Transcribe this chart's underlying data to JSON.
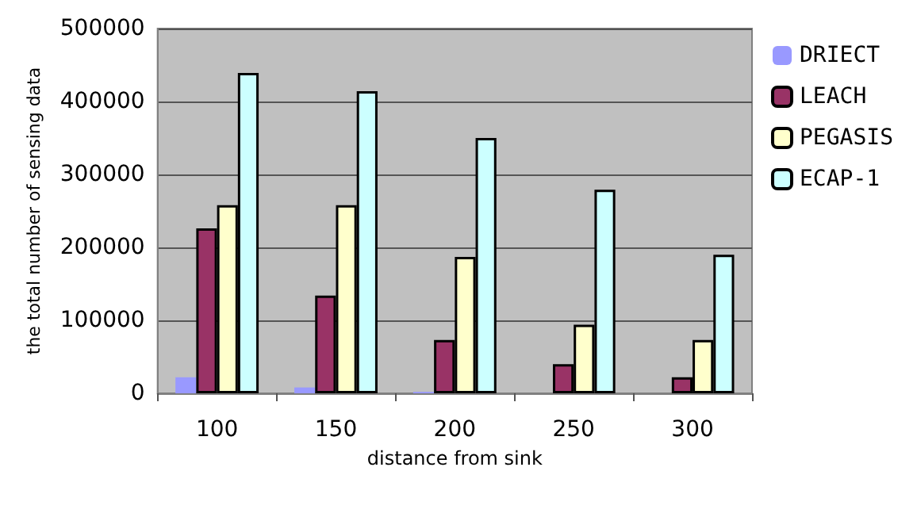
{
  "chart_data": {
    "type": "bar",
    "xlabel": "distance from sink",
    "ylabel": "the total number of sensing data",
    "categories": [
      "100",
      "150",
      "200",
      "250",
      "300"
    ],
    "series": [
      {
        "name": "DRIECT",
        "color": "#9999ff",
        "values": [
          22000,
          8000,
          2000,
          0,
          0
        ]
      },
      {
        "name": "LEACH",
        "color": "#993366",
        "values": [
          226000,
          134000,
          73000,
          40000,
          22000
        ]
      },
      {
        "name": "PEGASIS",
        "color": "#ffffcc",
        "values": [
          258000,
          258000,
          187000,
          94000,
          73000
        ]
      },
      {
        "name": "ECAP-1",
        "color": "#ccffff",
        "values": [
          439000,
          414000,
          350000,
          279000,
          190000
        ]
      }
    ],
    "ylim": [
      0,
      500000
    ],
    "yticks": [
      0,
      100000,
      200000,
      300000,
      400000,
      500000
    ],
    "grid": "y",
    "legend": "right"
  }
}
